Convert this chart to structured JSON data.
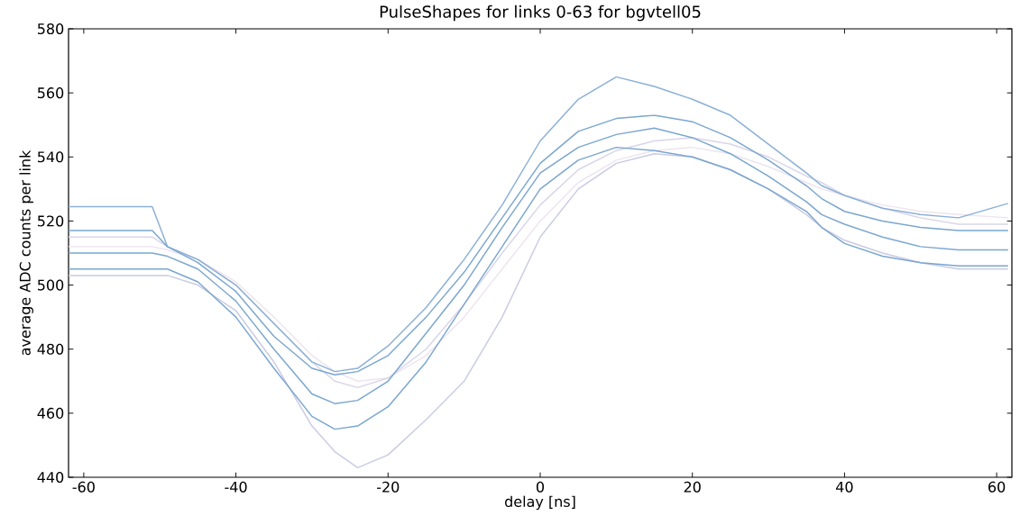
{
  "chart_data": {
    "type": "line",
    "title": "PulseShapes for links 0-63 for bgvtell05",
    "xlabel": "delay [ns]",
    "ylabel": "average ADC counts per link",
    "xlim": [
      -62,
      62
    ],
    "ylim": [
      440,
      580
    ],
    "xticks": [
      -60,
      -40,
      -20,
      0,
      20,
      40,
      60
    ],
    "yticks": [
      440,
      460,
      480,
      500,
      520,
      540,
      560,
      580
    ],
    "grid": false,
    "marker": "none",
    "line_style": "solid",
    "x": [
      -62,
      -56,
      -51,
      -49,
      -45,
      -40,
      -35,
      -30,
      -27,
      -24,
      -20,
      -15,
      -10,
      -5,
      0,
      5,
      10,
      15,
      20,
      25,
      30,
      35,
      37,
      40,
      45,
      50,
      55,
      61.5
    ],
    "series": [
      {
        "color": "#ede4ef",
        "values": [
          512,
          512,
          512,
          511,
          508,
          501,
          490,
          478,
          473,
          470,
          471,
          478,
          490,
          505,
          520,
          532,
          539,
          542,
          543,
          541,
          537,
          532,
          530,
          528,
          525,
          523,
          522,
          521
        ]
      },
      {
        "color": "#d9d5e9",
        "values": [
          515,
          515,
          515,
          512,
          508,
          500,
          488,
          476,
          470,
          468,
          471,
          480,
          494,
          510,
          525,
          536,
          542,
          545,
          546,
          544,
          540,
          534,
          532,
          528,
          524,
          521,
          519,
          519
        ]
      },
      {
        "color": "#c9cbe3",
        "values": [
          503,
          503,
          503,
          503,
          500,
          492,
          476,
          456,
          448,
          443,
          447,
          458,
          470,
          490,
          515,
          530,
          538,
          541,
          540,
          536,
          530,
          522,
          518,
          514,
          510,
          507,
          505,
          505
        ]
      },
      {
        "color": "#8ab0d6",
        "values": [
          524.5,
          524.5,
          524.5,
          512,
          508,
          500,
          488,
          476,
          473,
          474,
          481,
          493,
          508,
          525,
          545,
          558,
          565,
          562,
          558,
          553,
          544,
          535,
          531,
          528,
          524,
          522,
          521,
          525.5
        ]
      },
      {
        "color": "#7aa6cf",
        "values": [
          517,
          517,
          517,
          512,
          507,
          498,
          484,
          474,
          472,
          473,
          478,
          490,
          504,
          521,
          538,
          548,
          552,
          553,
          551,
          546,
          539,
          531,
          527,
          523,
          520,
          518,
          517,
          517
        ]
      },
      {
        "color": "#7aa6cf",
        "values": [
          510,
          510,
          510,
          509,
          505,
          495,
          480,
          466,
          463,
          464,
          470,
          485,
          500,
          518,
          535,
          543,
          547,
          549,
          546,
          541,
          534,
          526,
          522,
          519,
          515,
          512,
          511,
          511
        ]
      },
      {
        "color": "#7aa6cf",
        "values": [
          505,
          505,
          505,
          505,
          501,
          490,
          474,
          459,
          455,
          456,
          462,
          476,
          494,
          512,
          530,
          539,
          543,
          542,
          540,
          536,
          530,
          523,
          518,
          513,
          509,
          507,
          506,
          506
        ]
      }
    ]
  }
}
